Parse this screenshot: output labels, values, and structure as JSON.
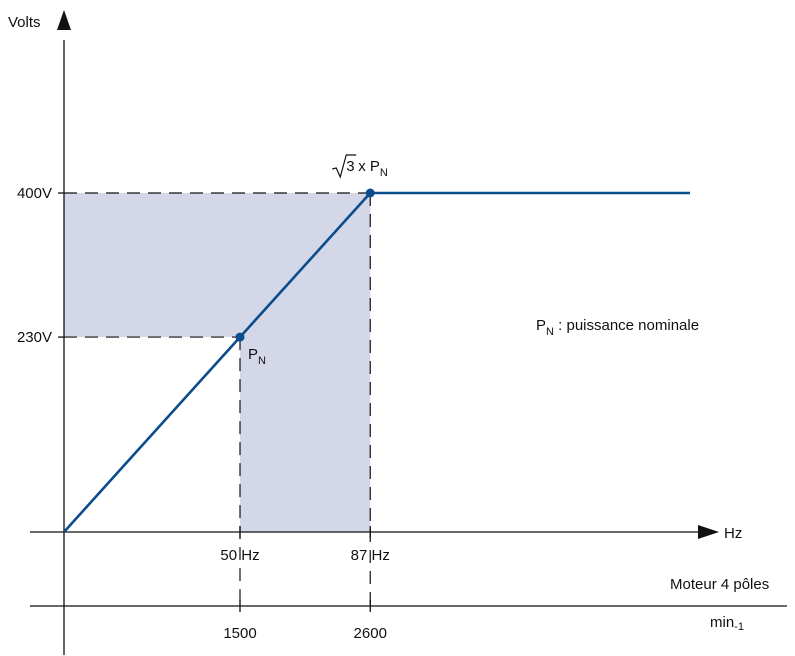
{
  "colors": {
    "line": "#0b4d8c",
    "fill": "#d3d7e8",
    "axis": "#111111",
    "background": "#ffffff"
  },
  "chart_data": {
    "type": "line",
    "title": "",
    "xlabel": "Hz",
    "ylabel": "Volts",
    "secondary_x": {
      "label": "Moteur 4 pôles",
      "unit_base": "min",
      "unit_exp": "-1",
      "ticks": [
        {
          "value": 1500,
          "label": "1500"
        },
        {
          "value": 2600,
          "label": "2600"
        }
      ]
    },
    "x_ticks": [
      {
        "value": 50,
        "label": "50 Hz"
      },
      {
        "value": 87,
        "label": "87 Hz"
      }
    ],
    "y_ticks": [
      {
        "value": 230,
        "label": "230V"
      },
      {
        "value": 400,
        "label": "400V"
      }
    ],
    "xlim": [
      0,
      155
    ],
    "ylim": [
      0,
      500
    ],
    "series": [
      {
        "x": [
          0,
          50,
          87,
          155
        ],
        "y": [
          0,
          230,
          400,
          400
        ]
      }
    ],
    "highlight_regions": [
      {
        "x": [
          0,
          87
        ],
        "y": [
          230,
          400
        ]
      },
      {
        "x": [
          50,
          87
        ],
        "y": [
          0,
          400
        ]
      }
    ],
    "points": [
      {
        "x": 50,
        "y": 230,
        "label_main": "P",
        "label_sub": "N",
        "label_prefix": ""
      },
      {
        "x": 87,
        "y": 400,
        "label_main": "P",
        "label_sub": "N",
        "label_prefix": "3 x "
      }
    ],
    "annotation": {
      "main": "P",
      "sub": "N",
      "text": " : puissance nominale"
    }
  }
}
